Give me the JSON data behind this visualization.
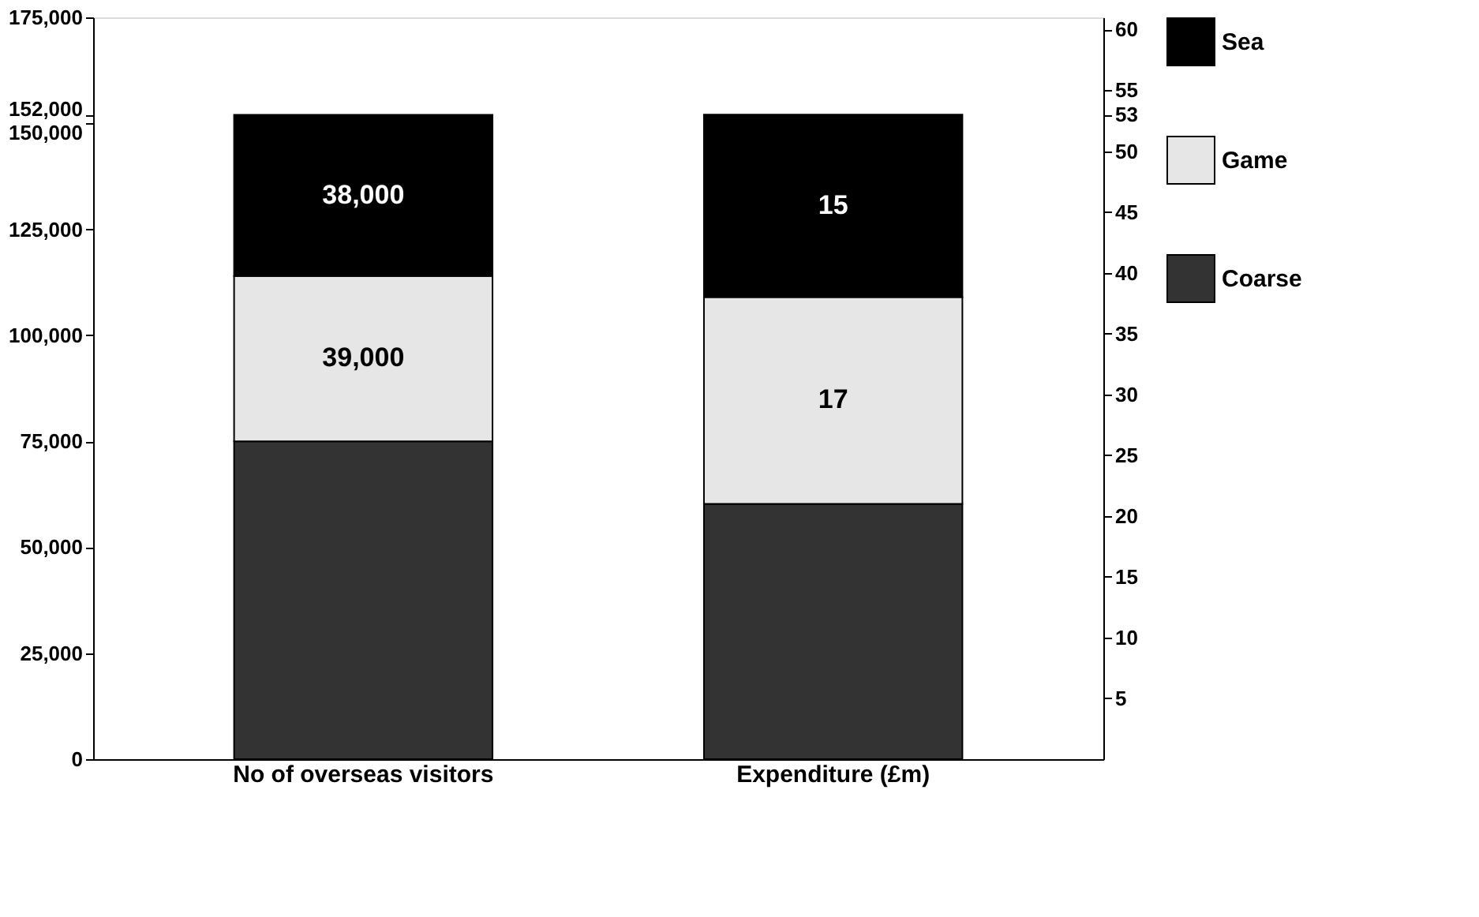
{
  "chart_data": {
    "type": "bar",
    "stacked": true,
    "categories": [
      "No of overseas visitors",
      "Expenditure (£m)"
    ],
    "series": [
      {
        "name": "Coarse",
        "color": "#333333",
        "values": [
          75000,
          null
        ],
        "value_labels": [
          null,
          null
        ]
      },
      {
        "name": "Game",
        "color": "#e6e6e6",
        "values": [
          39000,
          null
        ],
        "value_labels": [
          "39,000",
          null
        ]
      },
      {
        "name": "Sea",
        "color": "#000000",
        "values": [
          38000,
          null
        ],
        "value_labels": [
          "38,000",
          null
        ]
      },
      {
        "color": "#333333",
        "axis": "y2",
        "values": [
          null,
          21
        ],
        "value_labels": [
          null,
          null
        ]
      },
      {
        "color": "#e6e6e6",
        "axis": "y2",
        "values": [
          null,
          17
        ],
        "value_labels": [
          null,
          "17"
        ]
      },
      {
        "color": "#000000",
        "axis": "y2",
        "values": [
          null,
          15
        ],
        "value_labels": [
          null,
          "15"
        ]
      }
    ],
    "ylim": [
      0,
      175000
    ],
    "yticks": [
      0,
      {
        "value": 25000,
        "label": "25,000"
      },
      {
        "value": 50000,
        "label": "50,000"
      },
      {
        "value": 75000,
        "label": "75,000"
      },
      {
        "value": 100000,
        "label": "100,000"
      },
      {
        "value": 125000,
        "label": "125,000"
      },
      {
        "value": 150000,
        "label": "150,000"
      },
      {
        "value": 152000,
        "label": "152,000"
      },
      {
        "value": 175000,
        "label": "175,000"
      }
    ],
    "y2lim": [
      0,
      61
    ],
    "y2ticks": [
      5,
      10,
      15,
      20,
      25,
      30,
      35,
      40,
      45,
      50,
      53,
      55,
      60
    ],
    "grid": false,
    "legend": "right"
  }
}
